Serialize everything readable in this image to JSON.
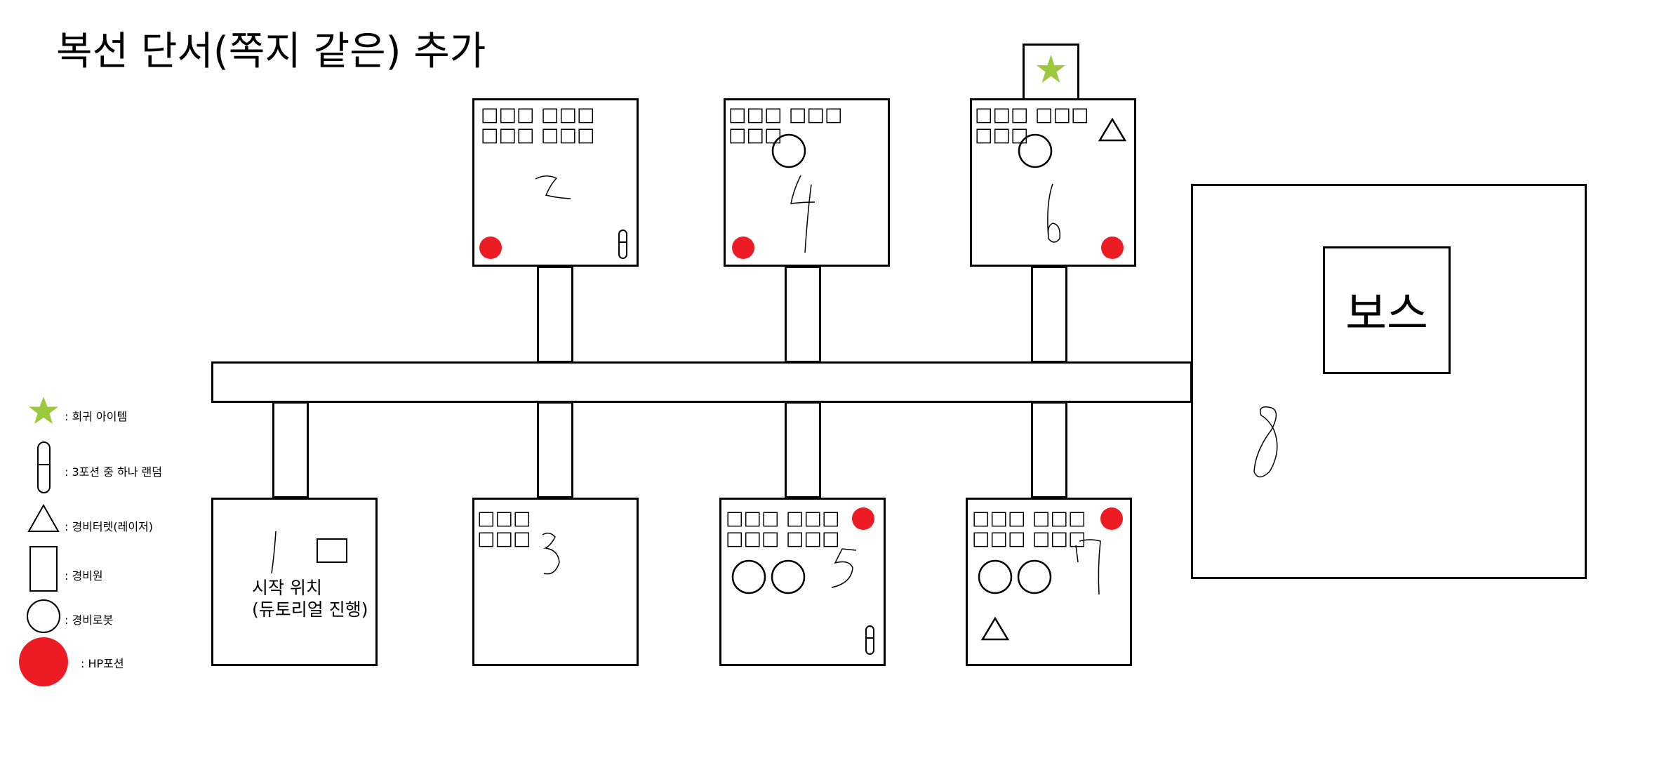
{
  "title": "복선 단서(쪽지 같은) 추가",
  "colors": {
    "potion": "#ed1c24",
    "star": "#9bc83c",
    "line": "#000000"
  },
  "rooms": {
    "r1": {
      "number": "1",
      "label_line1": "시작 위치",
      "label_line2": "(듀토리얼 진행)"
    },
    "r2": {
      "number": "2",
      "text": "□□□ □□□\n□□□ □□□",
      "items": [
        "hp-potion",
        "potion-vial"
      ]
    },
    "r3": {
      "number": "3",
      "text": "□□□\n□□□",
      "items": []
    },
    "r4": {
      "number": "4",
      "text": "□□□ □□□\n□□□",
      "items": [
        "guard-robot",
        "hp-potion"
      ]
    },
    "r5": {
      "number": "5",
      "text": "□□□ □□□\n□□□ □□□",
      "items": [
        "hp-potion",
        "guard-robot",
        "guard-robot",
        "potion-vial"
      ]
    },
    "r6": {
      "number": "6",
      "text": "□□□ □□□\n□□□",
      "items": [
        "turret",
        "guard-robot",
        "hp-potion",
        "rare-item"
      ]
    },
    "r7": {
      "number": "7",
      "text": "□□□ □□□\n□□□ □□□",
      "items": [
        "hp-potion",
        "guard-robot",
        "guard-robot",
        "turret"
      ]
    },
    "r8": {
      "number": "8",
      "boss_label": "보스"
    }
  },
  "legend": [
    {
      "icon": "star-icon",
      "label": ": 희귀 아이템"
    },
    {
      "icon": "potion-vial-icon",
      "label": ": 3포션 중 하나 랜덤"
    },
    {
      "icon": "triangle-icon",
      "label": ": 경비터렛(레이저)"
    },
    {
      "icon": "rectangle-icon",
      "label": ": 경비원"
    },
    {
      "icon": "circle-icon",
      "label": ": 경비로봇"
    },
    {
      "icon": "red-circle-icon",
      "label": ": HP포션"
    }
  ]
}
